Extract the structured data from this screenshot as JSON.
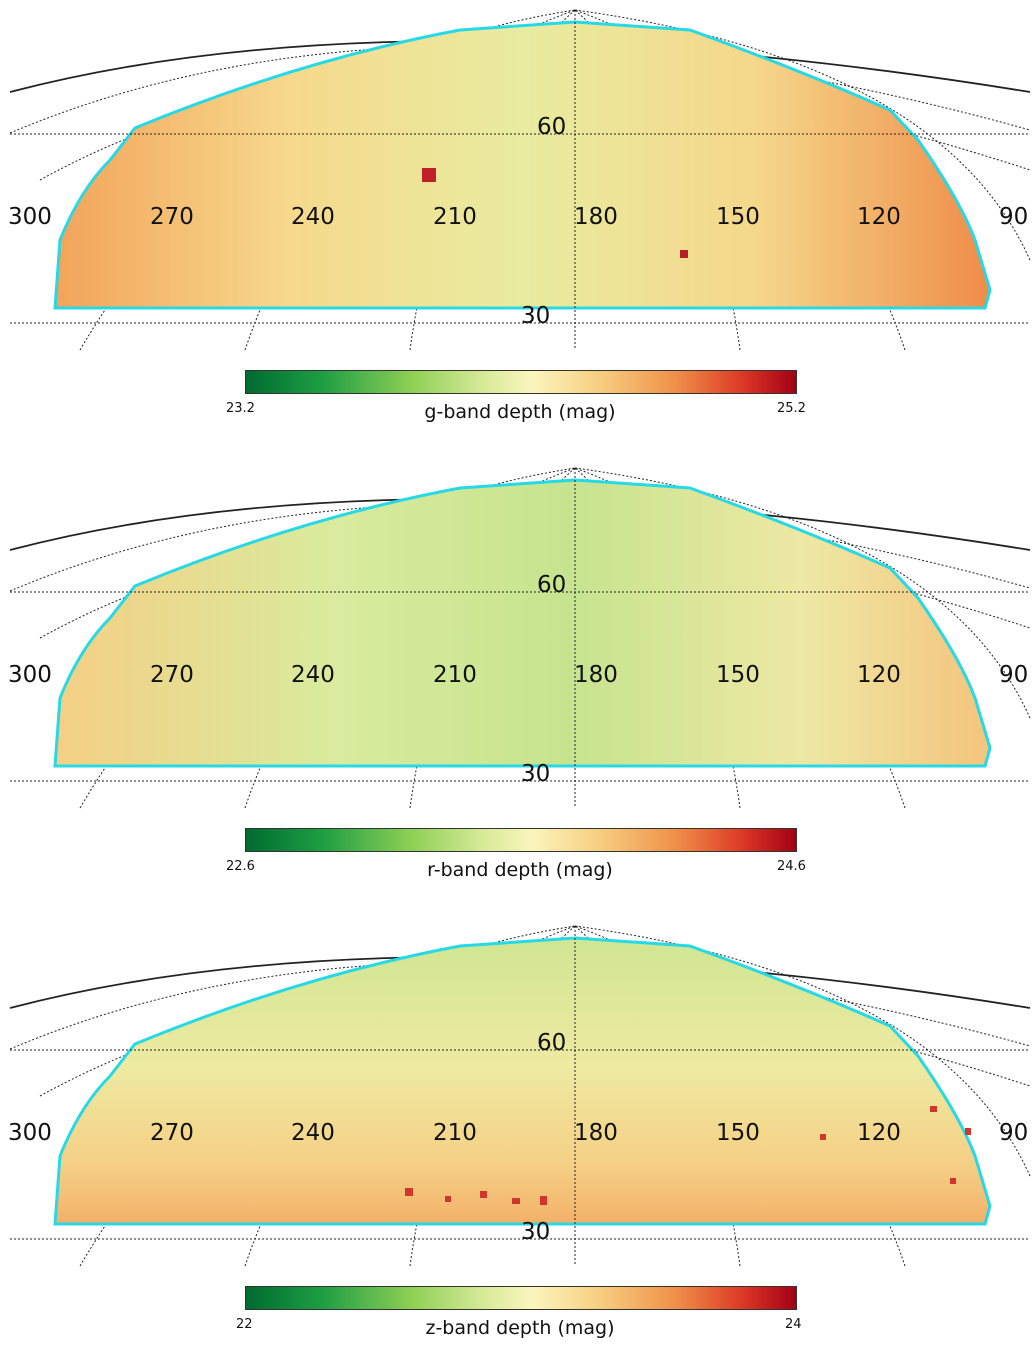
{
  "ra_labels": [
    "300",
    "270",
    "240",
    "210",
    "180",
    "150",
    "120",
    "90"
  ],
  "dec_labels": [
    "60",
    "30"
  ],
  "footprint_color": "#27d8e6",
  "panels": [
    {
      "name": "g",
      "cbar_min": "23.2",
      "cbar_max": "25.2",
      "cbar_label": "g-band depth (mag)"
    },
    {
      "name": "r",
      "cbar_min": "22.6",
      "cbar_max": "24.6",
      "cbar_label": "r-band depth (mag)"
    },
    {
      "name": "z",
      "cbar_min": "22",
      "cbar_max": "24",
      "cbar_label": "z-band depth (mag)"
    }
  ]
}
